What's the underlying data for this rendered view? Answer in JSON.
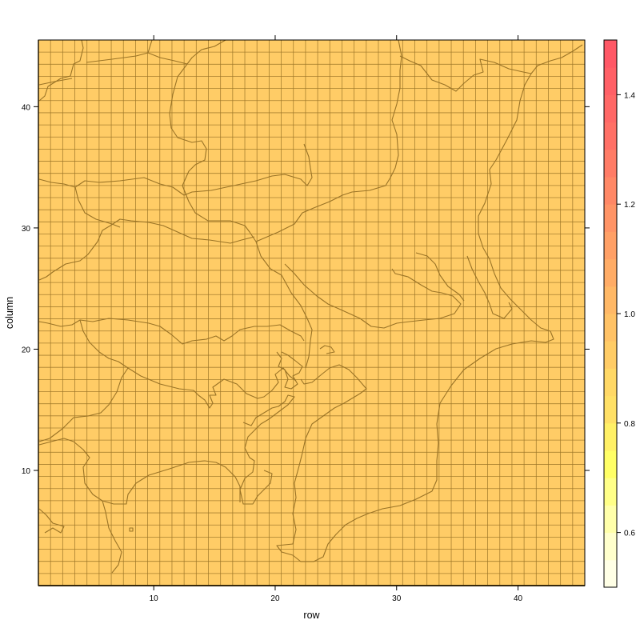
{
  "chart_data": {
    "type": "heatmap",
    "xlabel": "row",
    "ylabel": "column",
    "xlim": [
      0.5,
      45.5
    ],
    "ylim": [
      0.5,
      45.5
    ],
    "x_ticks": [
      10,
      20,
      30,
      40
    ],
    "y_ticks": [
      10,
      20,
      30,
      40
    ],
    "grid": true,
    "rows": 45,
    "columns": 45,
    "cell_value": 1.0,
    "cell_color": "#FFCC66",
    "grid_line_color": "#9A7326",
    "map_outline_color": "#9A7326",
    "colorbar": {
      "position": "right",
      "range": [
        0.5,
        1.5
      ],
      "ticks": [
        0.6,
        0.8,
        1.0,
        1.2,
        1.4
      ],
      "tick_labels": [
        "0.6",
        "0.8",
        "1.0",
        "1.2",
        "1.4"
      ],
      "breaks": [
        0.5,
        0.55,
        0.6,
        0.65,
        0.7,
        0.75,
        0.8,
        0.85,
        0.9,
        0.95,
        1.0,
        1.05,
        1.1,
        1.15,
        1.2,
        1.25,
        1.3,
        1.35,
        1.4,
        1.45,
        1.5
      ],
      "colors": [
        "#FFFFE6",
        "#FFFFCC",
        "#FFFFAA",
        "#FFFF88",
        "#FFFF66",
        "#FFF066",
        "#FFE066",
        "#FFD866",
        "#FFCC66",
        "#FFC266",
        "#FFB866",
        "#FFAC66",
        "#FFA066",
        "#FF9466",
        "#FF8866",
        "#FF7C66",
        "#FF7066",
        "#FF6866",
        "#FF6066",
        "#FF5866"
      ]
    }
  }
}
